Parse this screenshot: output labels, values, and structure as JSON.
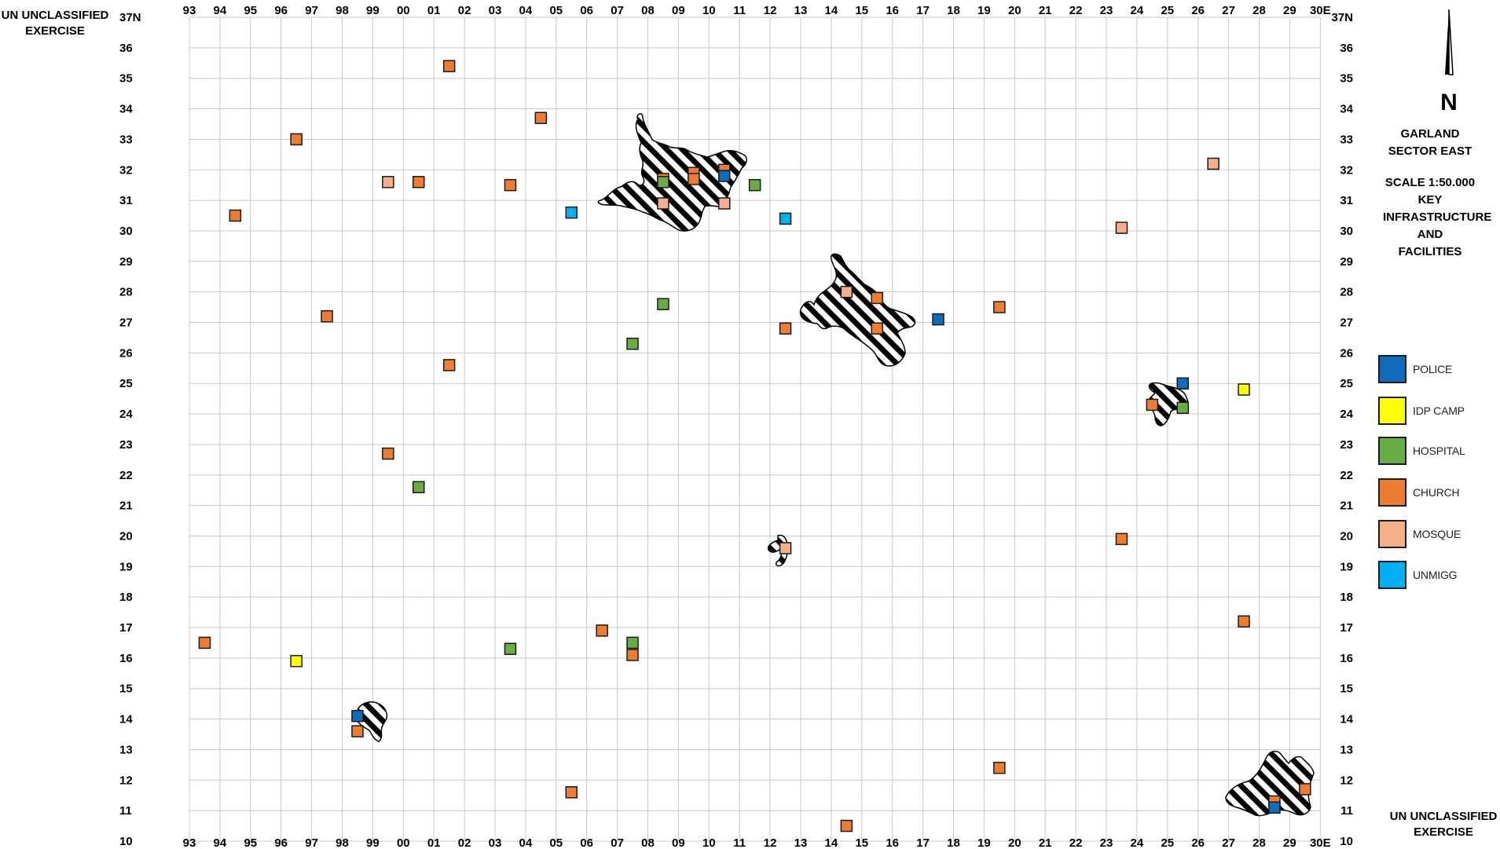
{
  "classification": {
    "top_left": [
      "UN UNCLASSIFIED",
      "EXERCISE"
    ],
    "bottom_right": [
      "UN UNCLASSIFIED",
      "EXERCISE"
    ]
  },
  "north_arrow": {
    "label": "N"
  },
  "map_title": [
    "GARLAND",
    "SECTOR EAST"
  ],
  "map_scale": [
    "SCALE 1:50.000",
    "KEY",
    "INFRASTRUCTURE",
    "AND",
    "FACILITIES"
  ],
  "grid": {
    "easting_labels": [
      "93",
      "94",
      "95",
      "96",
      "97",
      "98",
      "99",
      "00",
      "01",
      "02",
      "03",
      "04",
      "05",
      "06",
      "07",
      "08",
      "09",
      "10",
      "11",
      "12",
      "13",
      "14",
      "15",
      "16",
      "17",
      "18",
      "19",
      "20",
      "21",
      "22",
      "23",
      "24",
      "25",
      "26",
      "27",
      "28",
      "29",
      "30E"
    ],
    "northing_labels": [
      "37N",
      "36",
      "35",
      "34",
      "33",
      "32",
      "31",
      "30",
      "29",
      "28",
      "27",
      "26",
      "25",
      "24",
      "23",
      "22",
      "21",
      "20",
      "19",
      "18",
      "17",
      "16",
      "15",
      "14",
      "13",
      "12",
      "11",
      "10"
    ]
  },
  "legend": [
    {
      "type": "police",
      "label": "POLICE",
      "color": "#0f6cbd"
    },
    {
      "type": "idp",
      "label": "IDP CAMP",
      "color": "#ffff00"
    },
    {
      "type": "hospital",
      "label": "HOSPITAL",
      "color": "#6aad45"
    },
    {
      "type": "church",
      "label": "CHURCH",
      "color": "#ee7d31"
    },
    {
      "type": "mosque",
      "label": "MOSQUE",
      "color": "#f4b08c"
    },
    {
      "type": "unmigg",
      "label": "UNMIGG",
      "color": "#00b0f0"
    }
  ],
  "urban_areas": [
    "urban-area-09-31",
    "urban-area-14-27",
    "urban-area-25-24",
    "urban-area-12-19",
    "urban-area-99-14",
    "urban-area-28-11"
  ],
  "facilities": [
    {
      "type": "church",
      "e": "01",
      "n": 35.4
    },
    {
      "type": "church",
      "e": "04",
      "n": 33.7
    },
    {
      "type": "church",
      "e": "96",
      "n": 33.0
    },
    {
      "type": "mosque",
      "e": "99",
      "n": 31.6
    },
    {
      "type": "church",
      "e": "00",
      "n": 31.6
    },
    {
      "type": "church",
      "e": "03",
      "n": 31.5
    },
    {
      "type": "church",
      "e": "94",
      "n": 30.5
    },
    {
      "type": "unmigg",
      "e": "05",
      "n": 30.6
    },
    {
      "type": "church",
      "e": "08",
      "n": 31.7
    },
    {
      "type": "church",
      "e": "09",
      "n": 31.9
    },
    {
      "type": "hospital",
      "e": "08",
      "n": 31.6
    },
    {
      "type": "church",
      "e": "09",
      "n": 31.7
    },
    {
      "type": "church",
      "e": "10",
      "n": 32.0
    },
    {
      "type": "police",
      "e": "10",
      "n": 31.8
    },
    {
      "type": "mosque",
      "e": "08",
      "n": 30.9
    },
    {
      "type": "mosque",
      "e": "10",
      "n": 30.9
    },
    {
      "type": "hospital",
      "e": "11",
      "n": 31.5
    },
    {
      "type": "unmigg",
      "e": "12",
      "n": 30.4
    },
    {
      "type": "mosque",
      "e": "26",
      "n": 32.2
    },
    {
      "type": "mosque",
      "e": "23",
      "n": 30.1
    },
    {
      "type": "hospital",
      "e": "08",
      "n": 27.6
    },
    {
      "type": "hospital",
      "e": "07",
      "n": 26.3
    },
    {
      "type": "church",
      "e": "97",
      "n": 27.2
    },
    {
      "type": "church",
      "e": "01",
      "n": 25.6
    },
    {
      "type": "mosque",
      "e": "14",
      "n": 28.0
    },
    {
      "type": "church",
      "e": "15",
      "n": 27.8
    },
    {
      "type": "church",
      "e": "12",
      "n": 26.8
    },
    {
      "type": "church",
      "e": "15",
      "n": 26.8
    },
    {
      "type": "police",
      "e": "17",
      "n": 27.1
    },
    {
      "type": "church",
      "e": "19",
      "n": 27.5
    },
    {
      "type": "police",
      "e": "25",
      "n": 25.0
    },
    {
      "type": "idp",
      "e": "27",
      "n": 24.8
    },
    {
      "type": "church",
      "e": "24",
      "n": 24.3
    },
    {
      "type": "hospital",
      "e": "25",
      "n": 24.2
    },
    {
      "type": "church",
      "e": "99",
      "n": 22.7
    },
    {
      "type": "hospital",
      "e": "00",
      "n": 21.6
    },
    {
      "type": "mosque",
      "e": "12",
      "n": 19.6
    },
    {
      "type": "church",
      "e": "23",
      "n": 19.9
    },
    {
      "type": "church",
      "e": "27",
      "n": 17.2
    },
    {
      "type": "church",
      "e": "93",
      "n": 16.5
    },
    {
      "type": "idp",
      "e": "96",
      "n": 15.9
    },
    {
      "type": "hospital",
      "e": "03",
      "n": 16.3
    },
    {
      "type": "church",
      "e": "06",
      "n": 16.9
    },
    {
      "type": "hospital",
      "e": "07",
      "n": 16.5
    },
    {
      "type": "church",
      "e": "07",
      "n": 16.1
    },
    {
      "type": "police",
      "e": "98",
      "n": 14.1
    },
    {
      "type": "church",
      "e": "98",
      "n": 13.6
    },
    {
      "type": "church",
      "e": "05",
      "n": 11.6
    },
    {
      "type": "church",
      "e": "14",
      "n": 10.5
    },
    {
      "type": "church",
      "e": "19",
      "n": 12.4
    },
    {
      "type": "church",
      "e": "29",
      "n": 11.7
    },
    {
      "type": "church",
      "e": "28",
      "n": 11.3
    },
    {
      "type": "police",
      "e": "28",
      "n": 11.1
    }
  ]
}
